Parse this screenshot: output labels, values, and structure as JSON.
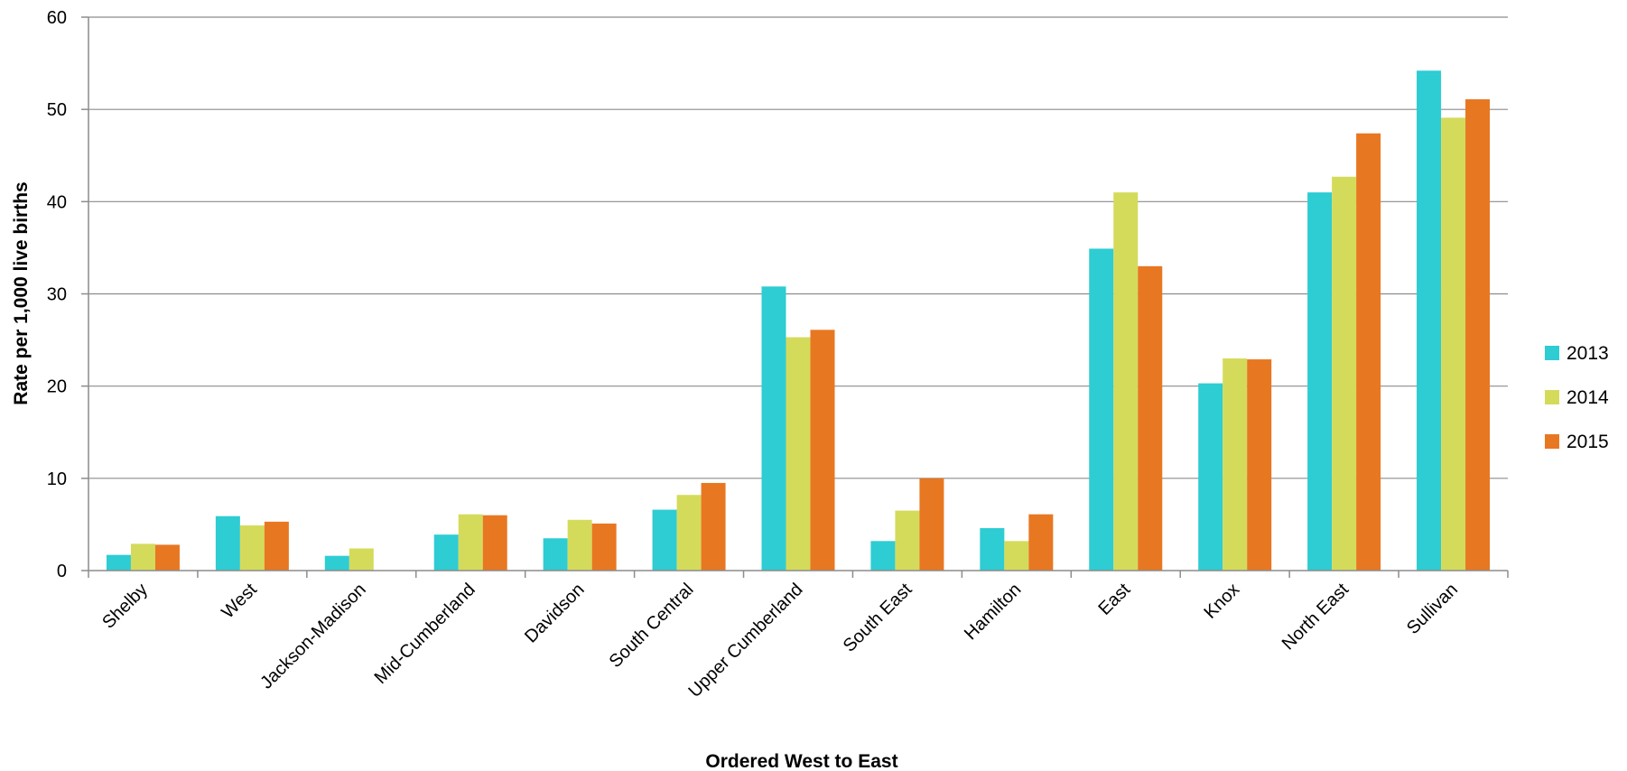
{
  "chart_data": {
    "type": "bar",
    "title": "",
    "xlabel": "Ordered West to East",
    "ylabel": "Rate per 1,000 live births",
    "ylim": [
      0,
      60
    ],
    "yticks": [
      0,
      10,
      20,
      30,
      40,
      50,
      60
    ],
    "grid": true,
    "legend_position": "right",
    "categories": [
      "Shelby",
      "West",
      "Jackson-Madison",
      "Mid-Cumberland",
      "Davidson",
      "South Central",
      "Upper Cumberland",
      "South East",
      "Hamilton",
      "East",
      "Knox",
      "North East",
      "Sullivan"
    ],
    "series": [
      {
        "name": "2013",
        "color": "#2ECCD3",
        "values": [
          1.7,
          5.9,
          1.6,
          3.9,
          3.5,
          6.6,
          30.8,
          3.2,
          4.6,
          34.9,
          20.3,
          41.0,
          54.2
        ]
      },
      {
        "name": "2014",
        "color": "#D4DB5B",
        "values": [
          2.9,
          4.9,
          2.4,
          6.1,
          5.5,
          8.2,
          25.3,
          6.5,
          3.2,
          41.0,
          23.0,
          42.7,
          49.1
        ]
      },
      {
        "name": "2015",
        "color": "#E87722",
        "values": [
          2.8,
          5.3,
          0,
          6.0,
          5.1,
          9.5,
          26.1,
          10.0,
          6.1,
          33.0,
          22.9,
          47.4,
          51.1
        ]
      }
    ]
  }
}
